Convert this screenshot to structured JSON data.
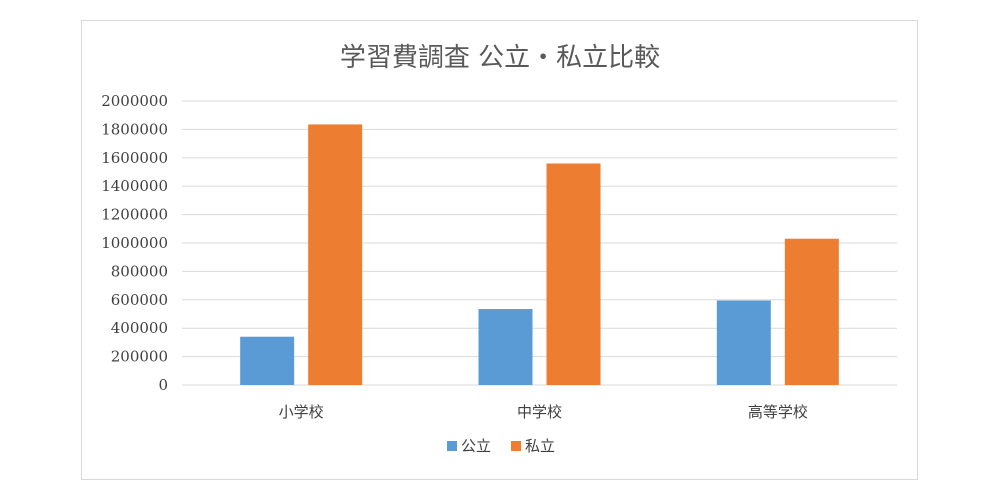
{
  "chart_data": {
    "type": "bar",
    "title": "学習費調査 公立・私立比較",
    "categories": [
      "小学校",
      "中学校",
      "高等学校"
    ],
    "series": [
      {
        "name": "公立",
        "color": "#5b9bd5",
        "values": [
          340000,
          535000,
          595000
        ]
      },
      {
        "name": "私立",
        "color": "#ed7d31",
        "values": [
          1835000,
          1560000,
          1030000
        ]
      }
    ],
    "yticks": [
      "0",
      "200000",
      "400000",
      "600000",
      "800000",
      "1000000",
      "1200000",
      "1400000",
      "1600000",
      "1800000",
      "2000000"
    ],
    "ylim": [
      0,
      2000000
    ],
    "grid": true,
    "legend_position": "bottom",
    "gridline_color": "#d9d9d9"
  }
}
